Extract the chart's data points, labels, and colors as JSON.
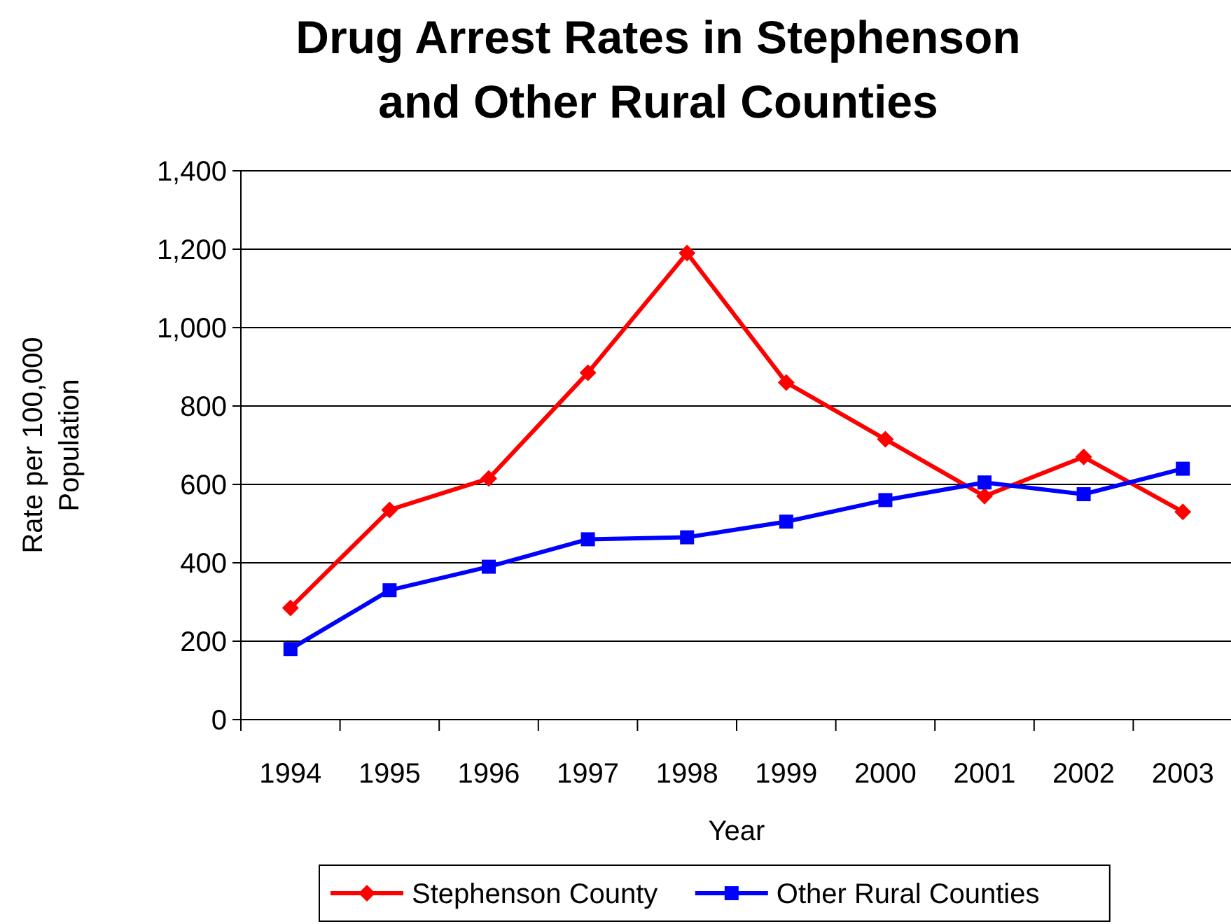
{
  "chart_data": {
    "type": "line",
    "title": "Drug Arrest Rates in Stephenson and Other Rural Counties",
    "xlabel": "Year",
    "ylabel": "Rate per 100,000 Population",
    "categories": [
      "1994",
      "1995",
      "1996",
      "1997",
      "1998",
      "1999",
      "2000",
      "2001",
      "2002",
      "2003"
    ],
    "series": [
      {
        "name": "Stephenson County",
        "color": "#ff0000",
        "marker": "diamond",
        "values": [
          285,
          535,
          615,
          885,
          1190,
          860,
          715,
          570,
          670,
          530
        ]
      },
      {
        "name": "Other Rural Counties",
        "color": "#0000ff",
        "marker": "square",
        "values": [
          180,
          330,
          390,
          460,
          465,
          505,
          560,
          605,
          575,
          640
        ]
      }
    ],
    "ylim": [
      0,
      1400
    ],
    "yticks": [
      {
        "value": 0,
        "label": "0"
      },
      {
        "value": 200,
        "label": "200"
      },
      {
        "value": 400,
        "label": "400"
      },
      {
        "value": 600,
        "label": "600"
      },
      {
        "value": 800,
        "label": "800"
      },
      {
        "value": 1000,
        "label": "1,000"
      },
      {
        "value": 1200,
        "label": "1,200"
      },
      {
        "value": 1400,
        "label": "1,400"
      }
    ],
    "grid": "y",
    "legend": "bottom",
    "line_style": "solid"
  }
}
